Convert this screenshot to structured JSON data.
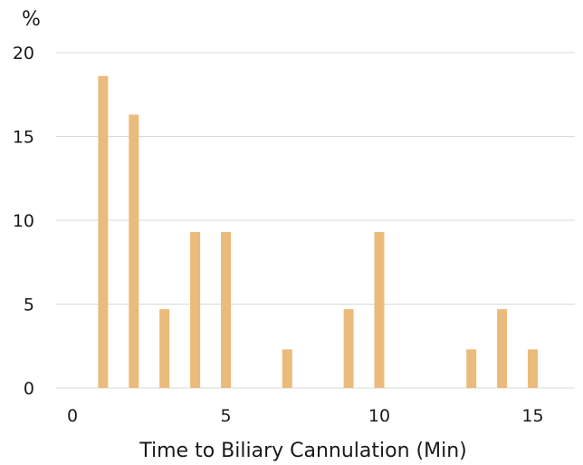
{
  "chart_data": {
    "type": "bar",
    "xlabel": "Time to Biliary Cannulation (Min)",
    "ylabel": "%",
    "x": [
      1,
      2,
      3,
      4,
      5,
      7,
      9,
      10,
      13,
      14,
      15
    ],
    "values": [
      18.6,
      16.3,
      4.7,
      9.3,
      9.3,
      2.3,
      4.7,
      9.3,
      2.3,
      4.7,
      2.3
    ],
    "xlim": [
      0,
      16.4
    ],
    "ylim": [
      0,
      20
    ],
    "xticks": [
      0,
      5,
      10,
      15
    ],
    "yticks": [
      0,
      5,
      10,
      15,
      20
    ],
    "xtick_labels": [
      "0",
      "5",
      "10",
      "15"
    ],
    "ytick_labels": [
      "0",
      "5",
      "10",
      "15",
      "20"
    ],
    "grid": "horizontal",
    "bar_color": "#ebbb7c",
    "grid_color": "#d9d9d9",
    "text_color": "#1a1a1a"
  }
}
